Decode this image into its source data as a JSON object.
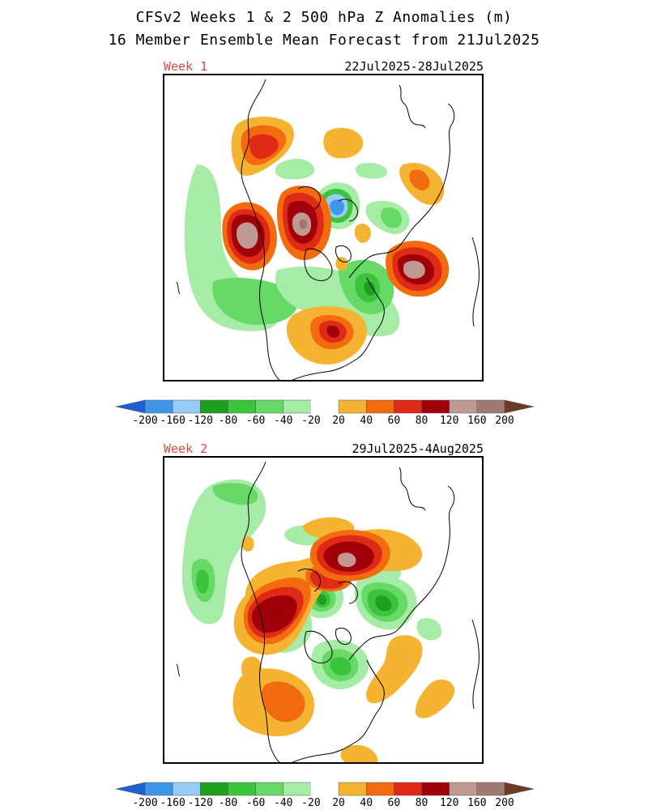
{
  "title_line1": "CFSv2 Weeks 1 & 2 500 hPa Z Anomalies (m)",
  "title_line2": "16 Member Ensemble Mean Forecast from 21Jul2025",
  "units": "m",
  "colorbar": {
    "levels": [
      "-200",
      "-160",
      "-120",
      "-80",
      "-60",
      "-40",
      "-20",
      "20",
      "40",
      "60",
      "80",
      "120",
      "160",
      "200"
    ],
    "colors": [
      "#1f5fcf",
      "#3f96e8",
      "#96cdf5",
      "#1f9e1f",
      "#3cc43c",
      "#66d966",
      "#a6eca6",
      "#ffffff",
      "#f5b332",
      "#f26b0f",
      "#e02a18",
      "#a0000a",
      "#c09a92",
      "#a07a70",
      "#6b3a28"
    ]
  },
  "panels": [
    {
      "label": "Week 1",
      "dates": "22Jul2025-28Jul2025"
    },
    {
      "label": "Week 2",
      "dates": "29Jul2025-4Aug2025"
    }
  ]
}
